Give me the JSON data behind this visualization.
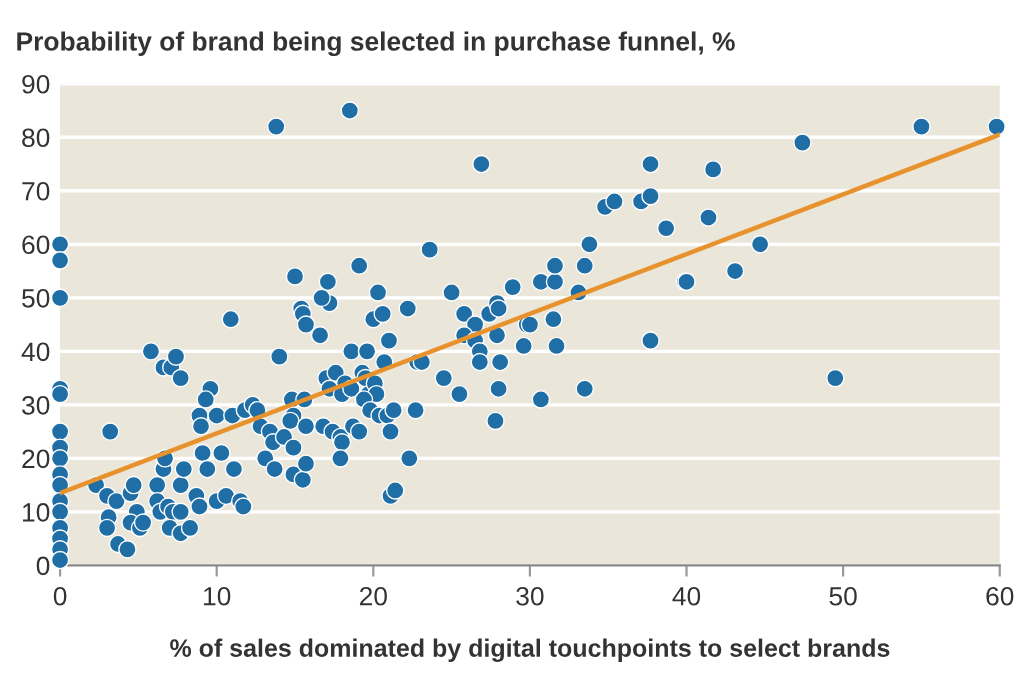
{
  "chart_data": {
    "type": "scatter",
    "title": "Probability of brand being selected in purchase funnel, %",
    "xlabel": "% of sales dominated by digital touchpoints to select brands",
    "xlim": [
      0,
      60
    ],
    "ylim": [
      0,
      90
    ],
    "xticks": [
      0,
      10,
      20,
      30,
      40,
      50,
      60
    ],
    "yticks": [
      0,
      10,
      20,
      30,
      40,
      50,
      60,
      70,
      80,
      90
    ],
    "grid": "y",
    "series": [
      {
        "marker": "circle",
        "color": "#1f6ea6",
        "x": [
          0,
          0,
          0,
          0,
          0,
          0,
          0,
          0,
          0,
          0,
          0,
          0,
          0,
          0,
          0,
          0,
          13.8,
          18.5,
          15,
          17.1,
          19.1,
          17.2,
          16.7,
          15.4,
          15.5,
          15.7,
          16.6,
          10.9,
          5.8,
          6.6,
          7.1,
          7.4,
          7.7,
          14,
          18.6,
          19.6,
          17,
          17.6,
          18.2,
          17.2,
          18,
          18.6,
          19.3,
          19.5,
          19.7,
          9.6,
          9.3,
          8.9,
          10,
          9,
          11,
          11.8,
          12.3,
          12.6,
          12.8,
          13.4,
          13.6,
          13.1,
          13.7,
          14.8,
          15.6,
          14.9,
          14.7,
          15.7,
          14.3,
          14.9,
          14.9,
          15.5,
          15.7,
          16.8,
          17.4,
          17.9,
          18,
          17.9,
          18.7,
          19.1,
          3.2,
          2.3,
          3,
          3.6,
          3.1,
          3,
          3.7,
          4.3,
          4.5,
          4.7,
          4.9,
          4.5,
          5.1,
          5.3,
          6.2,
          6.6,
          6.7,
          6.2,
          6.4,
          6.9,
          7.2,
          7.7,
          7,
          7.7,
          8.3,
          7.7,
          7.9,
          8.7,
          8.9,
          9.1,
          9.4,
          10,
          10.6,
          11.1,
          10.3,
          11.5,
          11.7,
          26.9,
          23.6,
          20.3,
          20,
          20.6,
          21,
          19.6,
          20.7,
          22.2,
          20.1,
          20.2,
          19.4,
          19.8,
          20.4,
          20.9,
          21.3,
          21.1,
          22.7,
          22.3,
          21.1,
          21.4,
          22.8,
          23.1,
          24.5,
          25.5,
          25,
          25.8,
          26.5,
          27.4,
          27.9,
          28,
          25.8,
          26.5,
          26.8,
          26.8,
          27.9,
          28.1,
          28,
          27.8,
          28.9,
          29.8,
          30,
          29.6,
          30.7,
          30.7,
          31.6,
          31.6,
          31.5,
          31.7,
          33.1,
          33.5,
          33.8,
          33.5,
          34.8,
          35.4,
          37.1,
          37.7,
          37.7,
          38.7,
          39.9,
          37.7,
          41.7,
          41.4,
          40,
          43.1,
          44.7,
          47.4,
          49.5,
          55,
          59.8
        ],
        "values": [
          60,
          57,
          50,
          33,
          32,
          25,
          22,
          20,
          17,
          15,
          12,
          10,
          7,
          5,
          3,
          1,
          82,
          85,
          54,
          53,
          56,
          49,
          50,
          48,
          47,
          45,
          43,
          46,
          40,
          37,
          37,
          39,
          35,
          39,
          40,
          40,
          35,
          36,
          34,
          33,
          32,
          33,
          36,
          35,
          32,
          33,
          31,
          28,
          28,
          26,
          28,
          29,
          30,
          29,
          26,
          25,
          23,
          20,
          18,
          31,
          31,
          28,
          27,
          26,
          24,
          22,
          17,
          16,
          19,
          26,
          25,
          24,
          23,
          20,
          26,
          25,
          25,
          15,
          13,
          12,
          9,
          7,
          4,
          3,
          13.5,
          15,
          10,
          8,
          7,
          8,
          15,
          18,
          20,
          12,
          10,
          11,
          10,
          10,
          7,
          6,
          7,
          15,
          18,
          13,
          11,
          21,
          18,
          12,
          13,
          18,
          21,
          12,
          11,
          75,
          59,
          51,
          46,
          47,
          42,
          40,
          38,
          48,
          34,
          32,
          31,
          29,
          28,
          28,
          29,
          25,
          29,
          20,
          13,
          14,
          38,
          38,
          35,
          32,
          51,
          47,
          45,
          47,
          49,
          48,
          43,
          42,
          40,
          38,
          43,
          38,
          33,
          27,
          52,
          45,
          45,
          41,
          31,
          53,
          53,
          56,
          46,
          41,
          51,
          56,
          60,
          33,
          67,
          68,
          68,
          69,
          75,
          63,
          53,
          42,
          74,
          65,
          53,
          55,
          60,
          79,
          35,
          82,
          82
        ]
      },
      {
        "type": "line",
        "marker": "none",
        "color": "#e8922e",
        "x": [
          0,
          60
        ],
        "values": [
          13.5,
          80.5
        ]
      }
    ]
  }
}
